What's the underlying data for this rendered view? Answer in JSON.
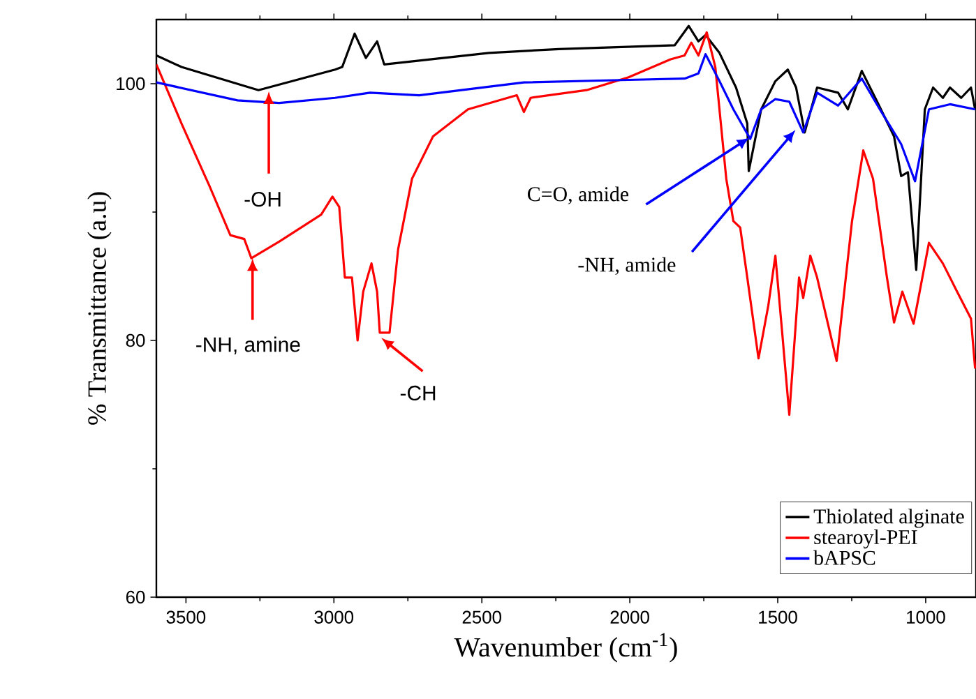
{
  "chart_data": {
    "type": "line",
    "xlabel": "Wavenumber (cm$^{-1}$)",
    "ylabel": "% Transmittance (a.u)",
    "xlim": [
      3600,
      830
    ],
    "ylim": [
      60,
      105
    ],
    "xticks": [
      3500,
      3000,
      2500,
      2000,
      1500,
      1000
    ],
    "yticks": [
      60,
      80,
      100
    ],
    "legend": "bottom right",
    "grid": false,
    "marker": "none",
    "line_style": "solid",
    "series": [
      {
        "name": "Thiolated alginate",
        "color": "#000000",
        "x": [
          3600,
          3515,
          3255,
          2996,
          2972,
          2930,
          2892,
          2854,
          2830,
          2476,
          2240,
          1848,
          1801,
          1768,
          1744,
          1697,
          1641,
          1603,
          1598,
          1556,
          1508,
          1466,
          1438,
          1409,
          1367,
          1296,
          1263,
          1216,
          1164,
          1107,
          1083,
          1060,
          1032,
          1003,
          975,
          942,
          918,
          880,
          847,
          833
        ],
        "values": [
          102.2,
          101.3,
          99.5,
          101.1,
          101.3,
          103.9,
          102,
          103.3,
          101.5,
          102.4,
          102.7,
          103,
          104.5,
          103.3,
          103.8,
          102.4,
          99.7,
          96.9,
          93.2,
          98,
          100.2,
          101.1,
          99.7,
          96.2,
          99.7,
          99.3,
          98,
          101,
          98.6,
          95.9,
          92.8,
          93.1,
          85.5,
          98,
          99.7,
          98.9,
          99.7,
          98.9,
          99.7,
          98
        ]
      },
      {
        "name": "stearoyl-PEI",
        "color": "#ff0000",
        "x": [
          3600,
          3515,
          3420,
          3350,
          3303,
          3279,
          3185,
          3043,
          3005,
          2982,
          2963,
          2939,
          2920,
          2901,
          2873,
          2854,
          2845,
          2812,
          2783,
          2736,
          2665,
          2547,
          2382,
          2358,
          2335,
          2146,
          2004,
          1862,
          1815,
          1792,
          1768,
          1740,
          1711,
          1674,
          1650,
          1627,
          1603,
          1565,
          1532,
          1508,
          1485,
          1461,
          1428,
          1414,
          1390,
          1367,
          1301,
          1249,
          1211,
          1178,
          1131,
          1107,
          1079,
          1041,
          989,
          942,
          894,
          847,
          833
        ],
        "values": [
          101.5,
          96.9,
          92,
          88.2,
          87.9,
          86.4,
          87.7,
          89.8,
          91.2,
          90.4,
          84.9,
          84.9,
          80,
          83.8,
          86,
          83.8,
          80.6,
          80.6,
          87.1,
          92.6,
          95.9,
          98,
          99.1,
          97.8,
          98.9,
          99.5,
          100.5,
          101.9,
          102.2,
          103.2,
          102.2,
          104,
          101.3,
          92.6,
          89.3,
          88.8,
          84.9,
          78.6,
          82.7,
          86.6,
          80.6,
          74.2,
          84.9,
          83.3,
          86.6,
          84.9,
          78.4,
          89.3,
          94.8,
          92.6,
          84.9,
          81.4,
          83.8,
          81.3,
          87.6,
          86,
          83.8,
          81.7,
          77.8
        ]
      },
      {
        "name": "bAPSC",
        "color": "#0000ff",
        "x": [
          3600,
          3326,
          3185,
          2996,
          2878,
          2712,
          2358,
          2004,
          1815,
          1768,
          1744,
          1697,
          1650,
          1593,
          1556,
          1508,
          1461,
          1414,
          1367,
          1296,
          1216,
          1155,
          1083,
          1036,
          989,
          918,
          833
        ],
        "values": [
          100.1,
          98.7,
          98.5,
          98.9,
          99.3,
          99.1,
          100.1,
          100.3,
          100.4,
          100.8,
          102.3,
          100.2,
          98,
          95.7,
          98,
          98.8,
          98.6,
          96.2,
          99.3,
          98.3,
          100.4,
          98,
          95.3,
          92.4,
          98,
          98.4,
          98
        ]
      }
    ],
    "annotations": [
      {
        "text": "-OH",
        "x": 3220,
        "y": 99.4
      },
      {
        "text": "-NH, amine",
        "x": 3275,
        "y": 86.4
      },
      {
        "text": "-CH",
        "x": 2840,
        "y": 80.2
      },
      {
        "text": "C=O, amide",
        "x": 1595,
        "y": 95.8
      },
      {
        "text": "-NH, amide",
        "x": 1440,
        "y": 96.4
      }
    ]
  }
}
